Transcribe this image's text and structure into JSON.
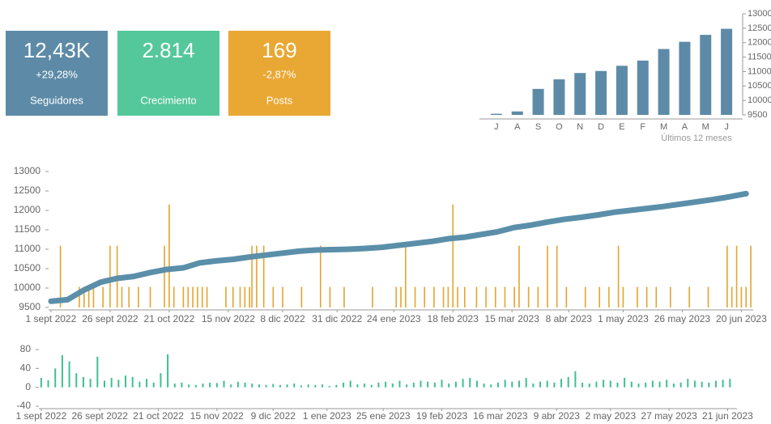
{
  "tiles": [
    {
      "value": "12,43K",
      "change": "+29,28%",
      "label": "Seguidores",
      "color": "#5d8ba7"
    },
    {
      "value": "2.814",
      "label": "Crecimiento",
      "color": "#55c89b"
    },
    {
      "value": "169",
      "change": "-2,87%",
      "label": "Posts",
      "color": "#e9a834"
    }
  ],
  "chart_data": [
    {
      "type": "bar",
      "xlabel": "Últimos 12 meses",
      "color": "#5d8ba7",
      "categories": [
        "J",
        "A",
        "S",
        "O",
        "N",
        "D",
        "E",
        "F",
        "M",
        "A",
        "M",
        "J"
      ],
      "values": [
        9540,
        9620,
        10400,
        10730,
        10950,
        11020,
        11200,
        11380,
        11780,
        12030,
        12270,
        12480
      ],
      "ylim": [
        9500,
        13000
      ],
      "yticks": [
        9500,
        10000,
        10500,
        11000,
        11500,
        12000,
        12500,
        13000
      ]
    },
    {
      "type": "line",
      "xlim": [
        -1,
        297
      ],
      "ylim": [
        9500,
        13000
      ],
      "y2lim": [
        0,
        6.6
      ],
      "yticks": [
        9500,
        10000,
        10500,
        11000,
        11500,
        12000,
        12500,
        13000
      ],
      "xticks": [
        {
          "value": 0,
          "label": "1 sept 2022"
        },
        {
          "value": 25,
          "label": "26 sept 2022"
        },
        {
          "value": 50,
          "label": "21 oct 2022"
        },
        {
          "value": 75,
          "label": "15 nov 2022"
        },
        {
          "value": 98,
          "label": "8 dic 2022"
        },
        {
          "value": 121,
          "label": "31 dic 2022"
        },
        {
          "value": 145,
          "label": "24 ene 2023"
        },
        {
          "value": 170,
          "label": "18 feb 2023"
        },
        {
          "value": 195,
          "label": "15 mar 2023"
        },
        {
          "value": 219,
          "label": "8 abr 2023"
        },
        {
          "value": 242,
          "label": "1 may 2023"
        },
        {
          "value": 267,
          "label": "26 may 2023"
        },
        {
          "value": 292,
          "label": "20 jun 2023"
        }
      ],
      "series": [
        {
          "color": "#e3a530",
          "axis": "y2",
          "kind": "bar",
          "x": [
            4,
            12,
            14,
            16,
            18,
            22,
            25,
            28,
            30,
            33,
            37,
            42,
            48,
            50,
            52,
            56,
            58,
            60,
            62,
            64,
            66,
            74,
            77,
            80,
            82,
            84,
            85,
            87,
            90,
            94,
            98,
            106,
            114,
            118,
            124,
            136,
            146,
            148,
            150,
            154,
            158,
            162,
            166,
            168,
            170,
            172,
            175,
            180,
            184,
            188,
            192,
            196,
            198,
            202,
            206,
            210,
            214,
            218,
            226,
            232,
            236,
            240,
            242,
            248,
            252,
            256,
            262,
            270,
            278,
            286,
            288,
            290,
            292,
            294,
            296
          ],
          "values": [
            3,
            1,
            1,
            1,
            1,
            1,
            3,
            3,
            1,
            1,
            1,
            1,
            3,
            5,
            1,
            1,
            1,
            1,
            1,
            1,
            1,
            1,
            1,
            1,
            1,
            1,
            3,
            3,
            3,
            1,
            1,
            1,
            3,
            1,
            1,
            1,
            1,
            1,
            3,
            1,
            1,
            1,
            1,
            1,
            5,
            1,
            1,
            1,
            1,
            1,
            1,
            1,
            3,
            1,
            1,
            3,
            3,
            1,
            1,
            1,
            1,
            3,
            1,
            1,
            1,
            1,
            1,
            1,
            1,
            3,
            1,
            3,
            1,
            1,
            3
          ]
        },
        {
          "color": "#5b8fa9",
          "kind": "line",
          "x": [
            0,
            7,
            14,
            21,
            28,
            35,
            42,
            49,
            56,
            63,
            70,
            77,
            84,
            91,
            98,
            105,
            112,
            119,
            126,
            133,
            140,
            147,
            154,
            161,
            168,
            175,
            182,
            189,
            196,
            203,
            210,
            217,
            224,
            231,
            238,
            245,
            252,
            259,
            266,
            273,
            280,
            287,
            294
          ],
          "values": [
            9660,
            9700,
            9950,
            10150,
            10250,
            10300,
            10400,
            10480,
            10520,
            10650,
            10700,
            10740,
            10800,
            10850,
            10900,
            10950,
            10980,
            10990,
            11000,
            11020,
            11050,
            11100,
            11150,
            11200,
            11270,
            11310,
            11380,
            11450,
            11560,
            11620,
            11700,
            11770,
            11820,
            11880,
            11950,
            12000,
            12050,
            12100,
            12160,
            12220,
            12280,
            12350,
            12430
          ]
        }
      ]
    },
    {
      "type": "bar",
      "color": "#3fbf91",
      "xlim": [
        -1,
        297
      ],
      "ylim": [
        -40,
        80
      ],
      "yticks": [
        -40,
        0,
        40,
        80
      ],
      "xticks": [
        {
          "value": 0,
          "label": "1 sept 2022"
        },
        {
          "value": 25,
          "label": "26 sept 2022"
        },
        {
          "value": 50,
          "label": "21 oct 2022"
        },
        {
          "value": 75,
          "label": "15 nov 2022"
        },
        {
          "value": 99,
          "label": "9 dic 2022"
        },
        {
          "value": 122,
          "label": "1 ene 2023"
        },
        {
          "value": 146,
          "label": "25 ene 2023"
        },
        {
          "value": 171,
          "label": "19 feb 2023"
        },
        {
          "value": 196,
          "label": "16 mar 2023"
        },
        {
          "value": 220,
          "label": "9 abr 2023"
        },
        {
          "value": 243,
          "label": "2 may 2023"
        },
        {
          "value": 268,
          "label": "27 may 2023"
        },
        {
          "value": 293,
          "label": "21 jun 2023"
        }
      ],
      "x": [
        0,
        3,
        6,
        9,
        12,
        15,
        18,
        21,
        24,
        27,
        30,
        33,
        36,
        39,
        42,
        45,
        48,
        51,
        54,
        57,
        60,
        63,
        66,
        69,
        72,
        75,
        78,
        81,
        84,
        87,
        90,
        93,
        96,
        99,
        102,
        105,
        108,
        111,
        114,
        117,
        120,
        123,
        126,
        129,
        132,
        135,
        138,
        141,
        144,
        147,
        150,
        153,
        156,
        159,
        162,
        165,
        168,
        171,
        174,
        177,
        180,
        183,
        186,
        189,
        192,
        195,
        198,
        201,
        204,
        207,
        210,
        213,
        216,
        219,
        222,
        225,
        228,
        231,
        234,
        237,
        240,
        243,
        246,
        249,
        252,
        255,
        258,
        261,
        264,
        267,
        270,
        273,
        276,
        279,
        282,
        285,
        288,
        291,
        294
      ],
      "values": [
        20,
        15,
        40,
        68,
        55,
        30,
        22,
        18,
        65,
        14,
        20,
        16,
        25,
        22,
        12,
        18,
        10,
        30,
        70,
        8,
        10,
        6,
        5,
        8,
        10,
        9,
        14,
        6,
        12,
        10,
        8,
        6,
        5,
        7,
        5,
        6,
        8,
        4,
        6,
        5,
        6,
        3,
        5,
        10,
        14,
        6,
        8,
        5,
        10,
        12,
        8,
        14,
        6,
        10,
        14,
        12,
        10,
        16,
        8,
        12,
        18,
        20,
        14,
        8,
        6,
        10,
        16,
        12,
        14,
        20,
        8,
        12,
        14,
        10,
        18,
        22,
        34,
        10,
        8,
        12,
        16,
        14,
        10,
        20,
        12,
        8,
        10,
        14,
        12,
        16,
        8,
        10,
        18,
        14,
        12,
        10,
        14,
        16,
        18
      ]
    }
  ]
}
